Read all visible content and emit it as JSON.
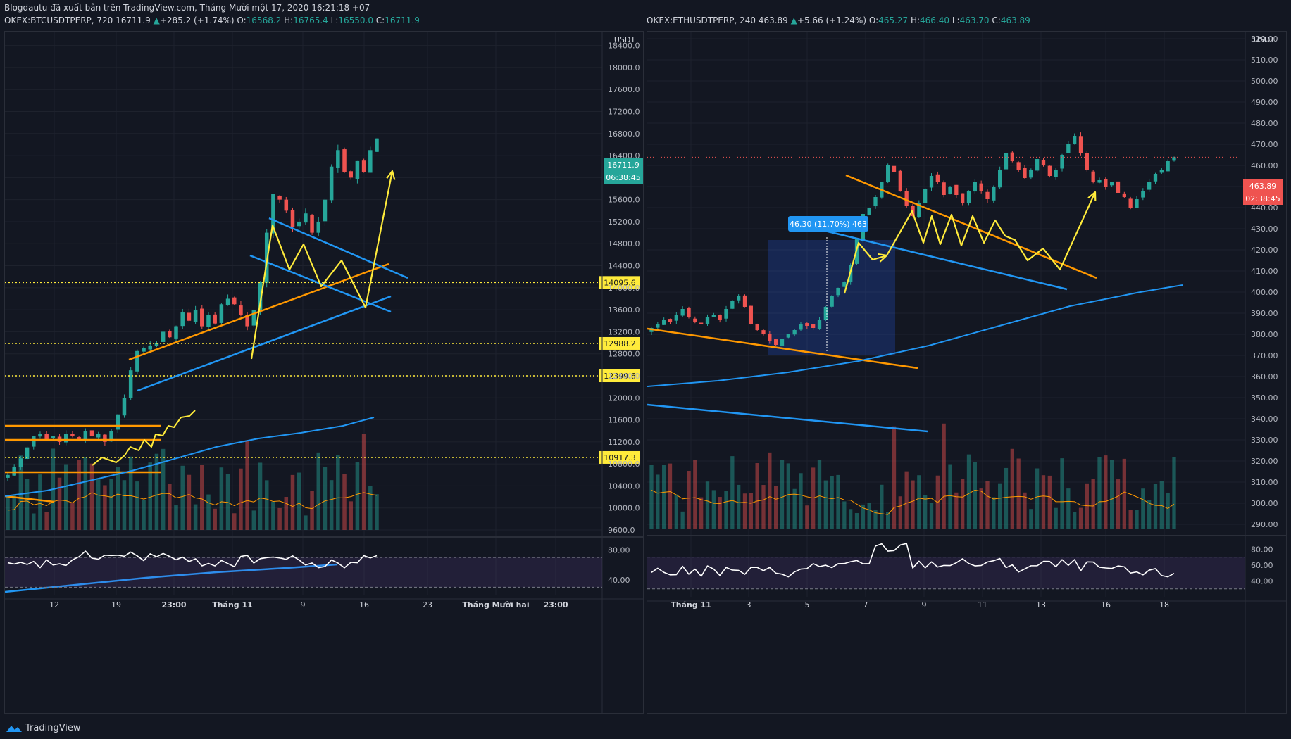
{
  "header": {
    "published": "Blogdautu đã xuất bản trên TradingView.com, Tháng Mười một 17, 2020 16:21:18 +07"
  },
  "left": {
    "symbol": "OKEX:BTCUSDTPERP, 720",
    "last": "16711.9",
    "change": "+285.2 (+1.74%)",
    "ohlc": {
      "o": "16568.2",
      "h": "16765.4",
      "l": "16550.0",
      "c": "16711.9"
    },
    "currency": "USDT",
    "price_badge": "16711.9",
    "countdown": "06:38:45",
    "levels": [
      "14095.6",
      "12988.2",
      "12399.6",
      "10917.3"
    ],
    "rsi_labels": [
      "80.00",
      "40.00"
    ],
    "x_labels": [
      "12",
      "19",
      "23:00",
      "Tháng 11",
      "9",
      "16",
      "23",
      "Tháng Mười hai",
      "23:00"
    ]
  },
  "right": {
    "symbol": "OKEX:ETHUSDTPERP, 240",
    "last": "463.89",
    "change": "+5.66 (+1.24%)",
    "ohlc": {
      "o": "465.27",
      "h": "466.40",
      "l": "463.70",
      "c": "463.89"
    },
    "currency": "USDT",
    "price_badge": "463.89",
    "countdown": "02:38:45",
    "measure_label": "46.30 (11.70%) 463",
    "rsi_labels": [
      "80.00",
      "60.00",
      "40.00"
    ],
    "x_labels": [
      "Tháng 11",
      "3",
      "5",
      "7",
      "9",
      "11",
      "13",
      "16",
      "18"
    ]
  },
  "brand": "TradingView",
  "colors": {
    "up": "#26a69a",
    "down": "#ef5350",
    "accent": "#2196f3",
    "yellow": "#ffeb3b",
    "orange": "#ff9800",
    "rsi_band": "#7e57c2"
  },
  "chart_data": [
    {
      "type": "candlestick",
      "symbol": "OKEX:BTCUSDTPERP",
      "timeframe": "720",
      "y_ticks": [
        "18400.0",
        "18000.0",
        "17600.0",
        "17200.0",
        "16800.0",
        "16400.0",
        "16000.0",
        "15600.0",
        "15200.0",
        "14800.0",
        "14400.0",
        "14000.0",
        "13600.0",
        "13200.0",
        "12800.0",
        "12400.0",
        "12000.0",
        "11600.0",
        "11200.0",
        "10800.0",
        "10400.0",
        "10000.0",
        "9600.0"
      ],
      "ylim": [
        9600,
        18600
      ],
      "series_close": [
        10600,
        10750,
        10900,
        11100,
        11300,
        11350,
        11250,
        11300,
        11200,
        11350,
        11300,
        11250,
        11400,
        11300,
        11350,
        11200,
        11400,
        11700,
        12000,
        12500,
        12850,
        12900,
        12950,
        13000,
        13200,
        13100,
        13300,
        13550,
        13400,
        13600,
        13300,
        13500,
        13350,
        13700,
        13800,
        13700,
        13500,
        13300,
        13600,
        14100,
        15000,
        15700,
        15600,
        15400,
        15100,
        15200,
        15350,
        15000,
        15200,
        15600,
        16200,
        16500,
        16100,
        16000,
        16300,
        16100,
        16500,
        16711.9
      ],
      "horizontal_levels": [
        14095.6,
        12988.2,
        12399.6,
        10917.3
      ]
    },
    {
      "type": "candlestick",
      "symbol": "OKEX:ETHUSDTPERP",
      "timeframe": "240",
      "y_ticks": [
        "520.00",
        "510.00",
        "500.00",
        "490.00",
        "480.00",
        "470.00",
        "460.00",
        "450.00",
        "440.00",
        "430.00",
        "420.00",
        "410.00",
        "400.00",
        "390.00",
        "380.00",
        "370.00",
        "360.00",
        "350.00",
        "340.00",
        "330.00",
        "320.00",
        "310.00",
        "300.00",
        "290.00"
      ],
      "ylim": [
        288,
        522
      ],
      "series_close": [
        383,
        385,
        387,
        386,
        389,
        392,
        388,
        386,
        385,
        388,
        389,
        387,
        392,
        396,
        398,
        393,
        385,
        382,
        380,
        377,
        375,
        378,
        380,
        382,
        385,
        384,
        383,
        387,
        393,
        398,
        402,
        405,
        413,
        425,
        437,
        440,
        445,
        452,
        460,
        457,
        448,
        441,
        436,
        442,
        449,
        455,
        452,
        446,
        450,
        446,
        442,
        448,
        452,
        448,
        444,
        450,
        458,
        466,
        462,
        458,
        454,
        458,
        463,
        460,
        455,
        458,
        465,
        470,
        474,
        466,
        458,
        452,
        453,
        450,
        452,
        447,
        445,
        440,
        444,
        448,
        452,
        456,
        458,
        462,
        463.89
      ]
    }
  ]
}
